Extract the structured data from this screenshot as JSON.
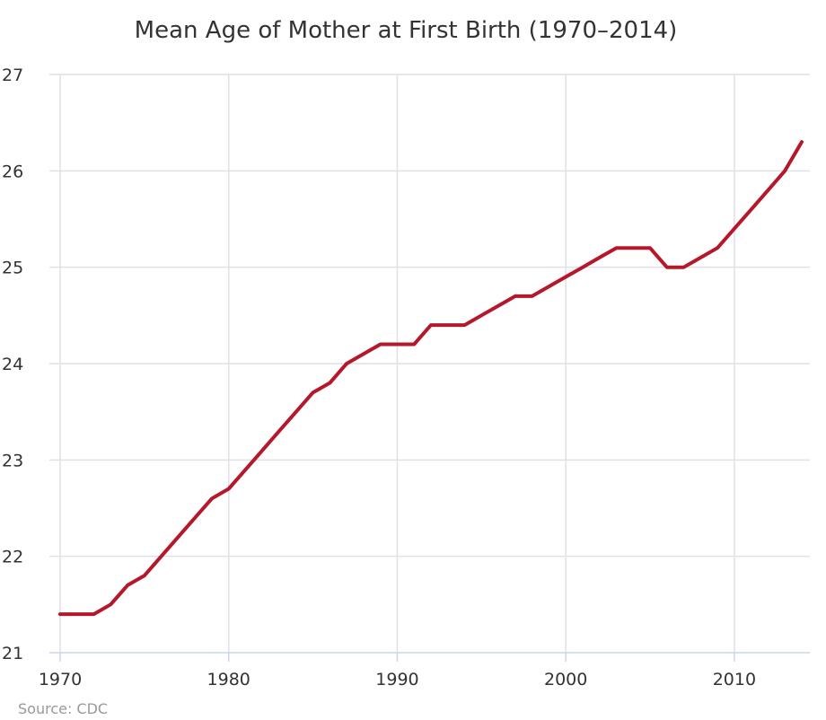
{
  "chart_data": {
    "type": "line",
    "title": "Mean Age of Mother at First Birth (1970–2014)",
    "source": "Source: CDC",
    "xlabel": "",
    "ylabel": "",
    "xlim": [
      1970,
      2014
    ],
    "ylim": [
      21,
      27
    ],
    "x_ticks": [
      1970,
      1980,
      1990,
      2000,
      2010
    ],
    "y_ticks": [
      21,
      22,
      23,
      24,
      25,
      26,
      27
    ],
    "grid": true,
    "legend": "none",
    "series": [
      {
        "color": "#b5182b",
        "x": [
          1970,
          1971,
          1972,
          1973,
          1974,
          1975,
          1976,
          1977,
          1978,
          1979,
          1980,
          1981,
          1982,
          1983,
          1984,
          1985,
          1986,
          1987,
          1988,
          1989,
          1990,
          1991,
          1992,
          1993,
          1994,
          1995,
          1996,
          1997,
          1998,
          1999,
          2000,
          2001,
          2002,
          2003,
          2004,
          2005,
          2006,
          2007,
          2008,
          2009,
          2010,
          2011,
          2012,
          2013,
          2014
        ],
        "values": [
          21.4,
          21.4,
          21.4,
          21.5,
          21.7,
          21.8,
          22.0,
          22.2,
          22.4,
          22.6,
          22.7,
          22.9,
          23.1,
          23.3,
          23.5,
          23.7,
          23.8,
          24.0,
          24.1,
          24.2,
          24.2,
          24.2,
          24.4,
          24.4,
          24.4,
          24.5,
          24.6,
          24.7,
          24.7,
          24.8,
          24.9,
          25.0,
          25.1,
          25.2,
          25.2,
          25.2,
          25.0,
          25.0,
          25.1,
          25.2,
          25.4,
          25.6,
          25.8,
          26.0,
          26.3
        ]
      }
    ]
  }
}
